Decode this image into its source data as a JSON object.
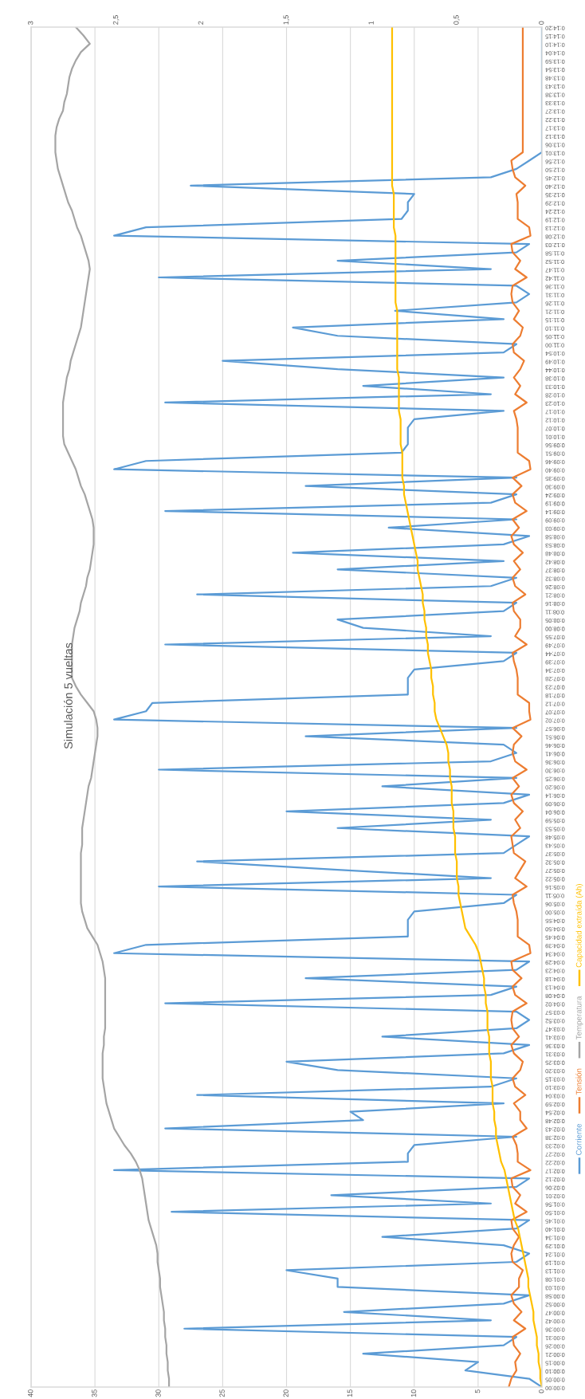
{
  "chart_data": {
    "type": "line",
    "title": "Simulación 5 vueltas",
    "orientation": "horizontal",
    "categories": [
      "0:14:20",
      "0:14:15",
      "0:14:10",
      "0:14:04",
      "0:13:59",
      "0:13:54",
      "0:13:48",
      "0:13:43",
      "0:13:38",
      "0:13:33",
      "0:13:27",
      "0:13:22",
      "0:13:17",
      "0:13:12",
      "0:13:06",
      "0:13:01",
      "0:12:56",
      "0:12:50",
      "0:12:45",
      "0:12:40",
      "0:12:35",
      "0:12:29",
      "0:12:24",
      "0:12:19",
      "0:12:13",
      "0:12:08",
      "0:12:03",
      "0:11:58",
      "0:11:52",
      "0:11:47",
      "0:11:42",
      "0:11:36",
      "0:11:31",
      "0:11:26",
      "0:11:21",
      "0:11:15",
      "0:11:10",
      "0:11:05",
      "0:11:00",
      "0:10:54",
      "0:10:49",
      "0:10:44",
      "0:10:38",
      "0:10:33",
      "0:10:28",
      "0:10:23",
      "0:10:17",
      "0:10:12",
      "0:10:07",
      "0:10:01",
      "0:09:56",
      "0:09:51",
      "0:09:46",
      "0:09:40",
      "0:09:35",
      "0:09:30",
      "0:09:24",
      "0:09:19",
      "0:09:14",
      "0:09:09",
      "0:09:03",
      "0:08:58",
      "0:08:53",
      "0:08:48",
      "0:08:42",
      "0:08:37",
      "0:08:32",
      "0:08:26",
      "0:08:21",
      "0:08:16",
      "0:08:11",
      "0:08:05",
      "0:08:00",
      "0:07:55",
      "0:07:49",
      "0:07:44",
      "0:07:39",
      "0:07:34",
      "0:07:28",
      "0:07:23",
      "0:07:18",
      "0:07:12",
      "0:07:07",
      "0:07:02",
      "0:06:57",
      "0:06:51",
      "0:06:46",
      "0:06:41",
      "0:06:36",
      "0:06:30",
      "0:06:25",
      "0:06:20",
      "0:06:14",
      "0:06:09",
      "0:06:04",
      "0:05:59",
      "0:05:53",
      "0:05:48",
      "0:05:43",
      "0:05:37",
      "0:05:32",
      "0:05:27",
      "0:05:22",
      "0:05:16",
      "0:05:11",
      "0:05:06",
      "0:05:00",
      "0:04:55",
      "0:04:50",
      "0:04:45",
      "0:04:39",
      "0:04:34",
      "0:04:29",
      "0:04:23",
      "0:04:18",
      "0:04:13",
      "0:04:08",
      "0:04:02",
      "0:03:57",
      "0:03:52",
      "0:03:47",
      "0:03:41",
      "0:03:36",
      "0:03:31",
      "0:03:25",
      "0:03:20",
      "0:03:15",
      "0:03:10",
      "0:03:04",
      "0:02:59",
      "0:02:54",
      "0:02:48",
      "0:02:43",
      "0:02:38",
      "0:02:33",
      "0:02:27",
      "0:02:22",
      "0:02:17",
      "0:02:12",
      "0:02:06",
      "0:02:01",
      "0:01:56",
      "0:01:50",
      "0:01:45",
      "0:01:40",
      "0:01:34",
      "0:01:29",
      "0:01:24",
      "0:01:19",
      "0:01:13",
      "0:01:08",
      "0:01:03",
      "0:00:58",
      "0:00:52",
      "0:00:47",
      "0:00:42",
      "0:00:36",
      "0:00:31",
      "0:00:26",
      "0:00:21",
      "0:00:15",
      "0:00:10",
      "0:00:05",
      "0:00:00"
    ],
    "series": [
      {
        "name": "Corriente",
        "color": "#5b9bd5",
        "values": [
          0,
          0,
          0,
          0,
          0,
          0,
          0,
          0,
          0,
          0,
          0,
          0,
          0,
          0,
          0,
          0,
          1,
          2,
          4,
          27.5,
          10,
          10.5,
          10.5,
          11,
          31,
          33.5,
          1,
          2,
          16,
          4,
          30,
          2,
          1,
          2,
          11.5,
          3,
          19.5,
          16,
          2,
          3,
          25,
          16,
          3,
          14,
          4,
          29.5,
          3,
          10,
          10.5,
          10.5,
          10.5,
          11,
          31,
          33.5,
          2,
          18.5,
          2,
          4,
          29.5,
          2,
          12,
          1,
          3,
          19.5,
          3,
          16,
          2,
          4,
          27,
          2,
          3,
          16,
          14,
          4,
          29.5,
          2,
          3,
          10,
          10.5,
          10.5,
          10.5,
          30.5,
          31,
          33.5,
          2,
          18.5,
          3,
          2,
          4,
          30,
          2,
          12.5,
          1,
          3,
          20,
          4,
          16,
          1,
          2,
          3,
          27,
          16,
          4,
          30,
          2,
          3,
          10,
          10.5,
          10.5,
          10.5,
          31,
          33.5,
          1,
          2,
          18.5,
          2,
          4,
          29.5,
          2,
          1,
          2,
          12.5,
          1,
          3,
          20,
          16,
          2,
          4,
          27,
          3,
          15,
          14,
          29.5,
          2,
          10,
          10.5,
          10.5,
          33.5,
          1,
          2,
          16.5,
          4,
          29,
          1,
          2,
          12.5,
          3,
          1,
          2,
          20,
          16,
          16,
          1,
          3,
          15.5,
          4,
          28,
          2,
          3,
          14,
          5,
          6,
          1,
          0
        ]
      },
      {
        "name": "Tensión",
        "color": "#ed7d31",
        "values": [
          1.5,
          1.5,
          1.5,
          1.5,
          1.5,
          1.5,
          1.5,
          1.5,
          1.5,
          1.5,
          1.5,
          1.5,
          1.5,
          1.5,
          1.5,
          1.5,
          2.4,
          2.3,
          2.1,
          1.3,
          2.0,
          1.9,
          1.9,
          1.9,
          1.0,
          0.9,
          2.4,
          2.3,
          1.7,
          2.1,
          1.2,
          2.3,
          2.4,
          2.3,
          1.8,
          2.2,
          1.5,
          1.7,
          2.3,
          2.2,
          1.4,
          1.7,
          2.2,
          1.7,
          2.1,
          1.2,
          2.2,
          2.0,
          1.9,
          1.9,
          1.9,
          1.9,
          1.0,
          0.9,
          2.3,
          1.6,
          2.3,
          2.1,
          1.2,
          2.3,
          1.8,
          2.4,
          2.2,
          1.5,
          2.2,
          1.7,
          2.3,
          2.1,
          1.3,
          2.3,
          2.2,
          1.7,
          1.7,
          2.1,
          1.2,
          2.3,
          2.2,
          2.0,
          1.9,
          1.9,
          1.9,
          1.0,
          1.0,
          0.9,
          2.3,
          1.6,
          2.2,
          2.3,
          2.1,
          1.2,
          2.3,
          1.8,
          2.4,
          2.2,
          1.5,
          2.1,
          1.7,
          2.4,
          2.3,
          2.2,
          1.3,
          1.7,
          2.1,
          1.2,
          2.3,
          2.2,
          2.0,
          1.9,
          1.9,
          1.9,
          1.0,
          0.9,
          2.4,
          2.3,
          1.6,
          2.3,
          2.1,
          1.2,
          2.3,
          2.4,
          2.3,
          1.8,
          2.4,
          2.2,
          1.5,
          1.7,
          2.3,
          2.1,
          1.3,
          2.2,
          1.7,
          1.7,
          1.2,
          2.3,
          2.0,
          1.9,
          1.9,
          0.9,
          2.4,
          2.3,
          1.7,
          2.1,
          1.2,
          2.4,
          2.3,
          1.8,
          2.2,
          2.4,
          2.3,
          1.5,
          1.8,
          1.8,
          2.4,
          2.2,
          1.6,
          2.2,
          1.3,
          2.3,
          2.2,
          1.7,
          2.1,
          2.0,
          2.4,
          2.6
        ]
      },
      {
        "name": "Temperatura",
        "color": "#a5a5a5",
        "values": [
          36.5,
          35.9,
          35.4,
          36.1,
          36.5,
          36.8,
          37.0,
          37.1,
          37.2,
          37.4,
          37.5,
          37.8,
          38.0,
          38.1,
          38.1,
          38.1,
          38.0,
          37.9,
          37.7,
          37.5,
          37.3,
          37.1,
          36.8,
          36.6,
          36.4,
          36.1,
          35.9,
          35.7,
          35.5,
          35.4,
          35.5,
          35.6,
          35.7,
          35.8,
          35.9,
          36.0,
          36.1,
          36.3,
          36.5,
          36.7,
          36.9,
          37.0,
          37.2,
          37.3,
          37.4,
          37.5,
          37.5,
          37.5,
          37.5,
          37.5,
          37.4,
          37.1,
          36.8,
          36.5,
          36.3,
          36.1,
          35.8,
          35.6,
          35.4,
          35.2,
          35.1,
          35.1,
          35.1,
          35.2,
          35.3,
          35.4,
          35.6,
          35.7,
          35.9,
          36.1,
          36.2,
          36.4,
          36.6,
          36.7,
          36.8,
          36.8,
          36.8,
          36.8,
          36.8,
          36.5,
          36.1,
          35.6,
          35.1,
          34.9,
          34.8,
          34.8,
          34.9,
          35.0,
          35.1,
          35.2,
          35.3,
          35.5,
          35.6,
          35.7,
          35.8,
          35.9,
          36.0,
          36.0,
          36.0,
          36.1,
          36.1,
          36.1,
          36.1,
          36.1,
          36.1,
          36.1,
          36.0,
          35.8,
          35.6,
          35.2,
          34.8,
          34.6,
          34.4,
          34.3,
          34.2,
          34.2,
          34.2,
          34.2,
          34.2,
          34.2,
          34.2,
          34.3,
          34.3,
          34.4,
          34.4,
          34.4,
          34.4,
          34.3,
          34.2,
          34.1,
          33.9,
          33.7,
          33.5,
          33.1,
          32.7,
          32.2,
          31.8,
          31.5,
          31.3,
          31.2,
          31.1,
          31.0,
          30.9,
          30.8,
          30.6,
          30.4,
          30.2,
          30.1,
          30.1,
          30.0,
          29.9,
          29.9,
          29.8,
          29.7,
          29.6,
          29.6,
          29.5,
          29.5,
          29.4,
          29.4,
          29.3,
          29.3,
          29.2,
          29.2
        ]
      },
      {
        "name": "Capacidad extraída (Ah)",
        "color": "#ffc000",
        "axis": "x2",
        "values": [
          0.88,
          0.88,
          0.88,
          0.88,
          0.88,
          0.88,
          0.88,
          0.88,
          0.88,
          0.88,
          0.88,
          0.88,
          0.88,
          0.88,
          0.88,
          0.88,
          0.88,
          0.88,
          0.88,
          0.88,
          0.87,
          0.87,
          0.87,
          0.87,
          0.87,
          0.86,
          0.86,
          0.86,
          0.86,
          0.86,
          0.86,
          0.86,
          0.86,
          0.86,
          0.85,
          0.85,
          0.85,
          0.85,
          0.85,
          0.85,
          0.85,
          0.85,
          0.84,
          0.84,
          0.84,
          0.84,
          0.84,
          0.83,
          0.83,
          0.83,
          0.83,
          0.82,
          0.82,
          0.82,
          0.82,
          0.81,
          0.81,
          0.8,
          0.79,
          0.78,
          0.77,
          0.76,
          0.75,
          0.74,
          0.73,
          0.73,
          0.72,
          0.71,
          0.7,
          0.7,
          0.69,
          0.69,
          0.68,
          0.68,
          0.67,
          0.67,
          0.66,
          0.65,
          0.65,
          0.64,
          0.64,
          0.63,
          0.63,
          0.62,
          0.6,
          0.58,
          0.56,
          0.55,
          0.55,
          0.54,
          0.54,
          0.53,
          0.53,
          0.53,
          0.52,
          0.52,
          0.52,
          0.51,
          0.51,
          0.51,
          0.5,
          0.5,
          0.5,
          0.49,
          0.49,
          0.48,
          0.47,
          0.46,
          0.45,
          0.42,
          0.39,
          0.37,
          0.36,
          0.35,
          0.34,
          0.34,
          0.33,
          0.33,
          0.32,
          0.32,
          0.32,
          0.31,
          0.31,
          0.31,
          0.3,
          0.3,
          0.3,
          0.29,
          0.29,
          0.29,
          0.28,
          0.28,
          0.27,
          0.27,
          0.26,
          0.25,
          0.24,
          0.22,
          0.21,
          0.2,
          0.19,
          0.18,
          0.17,
          0.16,
          0.14,
          0.13,
          0.12,
          0.11,
          0.1,
          0.09,
          0.08,
          0.08,
          0.07,
          0.06,
          0.05,
          0.05,
          0.04,
          0.03,
          0.03,
          0.02,
          0.02,
          0.01,
          0.01,
          0
        ]
      }
    ],
    "xlim": [
      40,
      0
    ],
    "xticks": [
      0,
      5,
      10,
      15,
      20,
      25,
      30,
      35,
      40
    ],
    "x2lim": [
      3,
      0
    ],
    "x2ticks": [
      0,
      {
        "value": 0.5,
        "label": "0,5"
      },
      1,
      {
        "value": 1.5,
        "label": "1,5"
      },
      2,
      {
        "value": 2.5,
        "label": "2,5"
      },
      3
    ],
    "grid": "x",
    "legend": "right"
  }
}
